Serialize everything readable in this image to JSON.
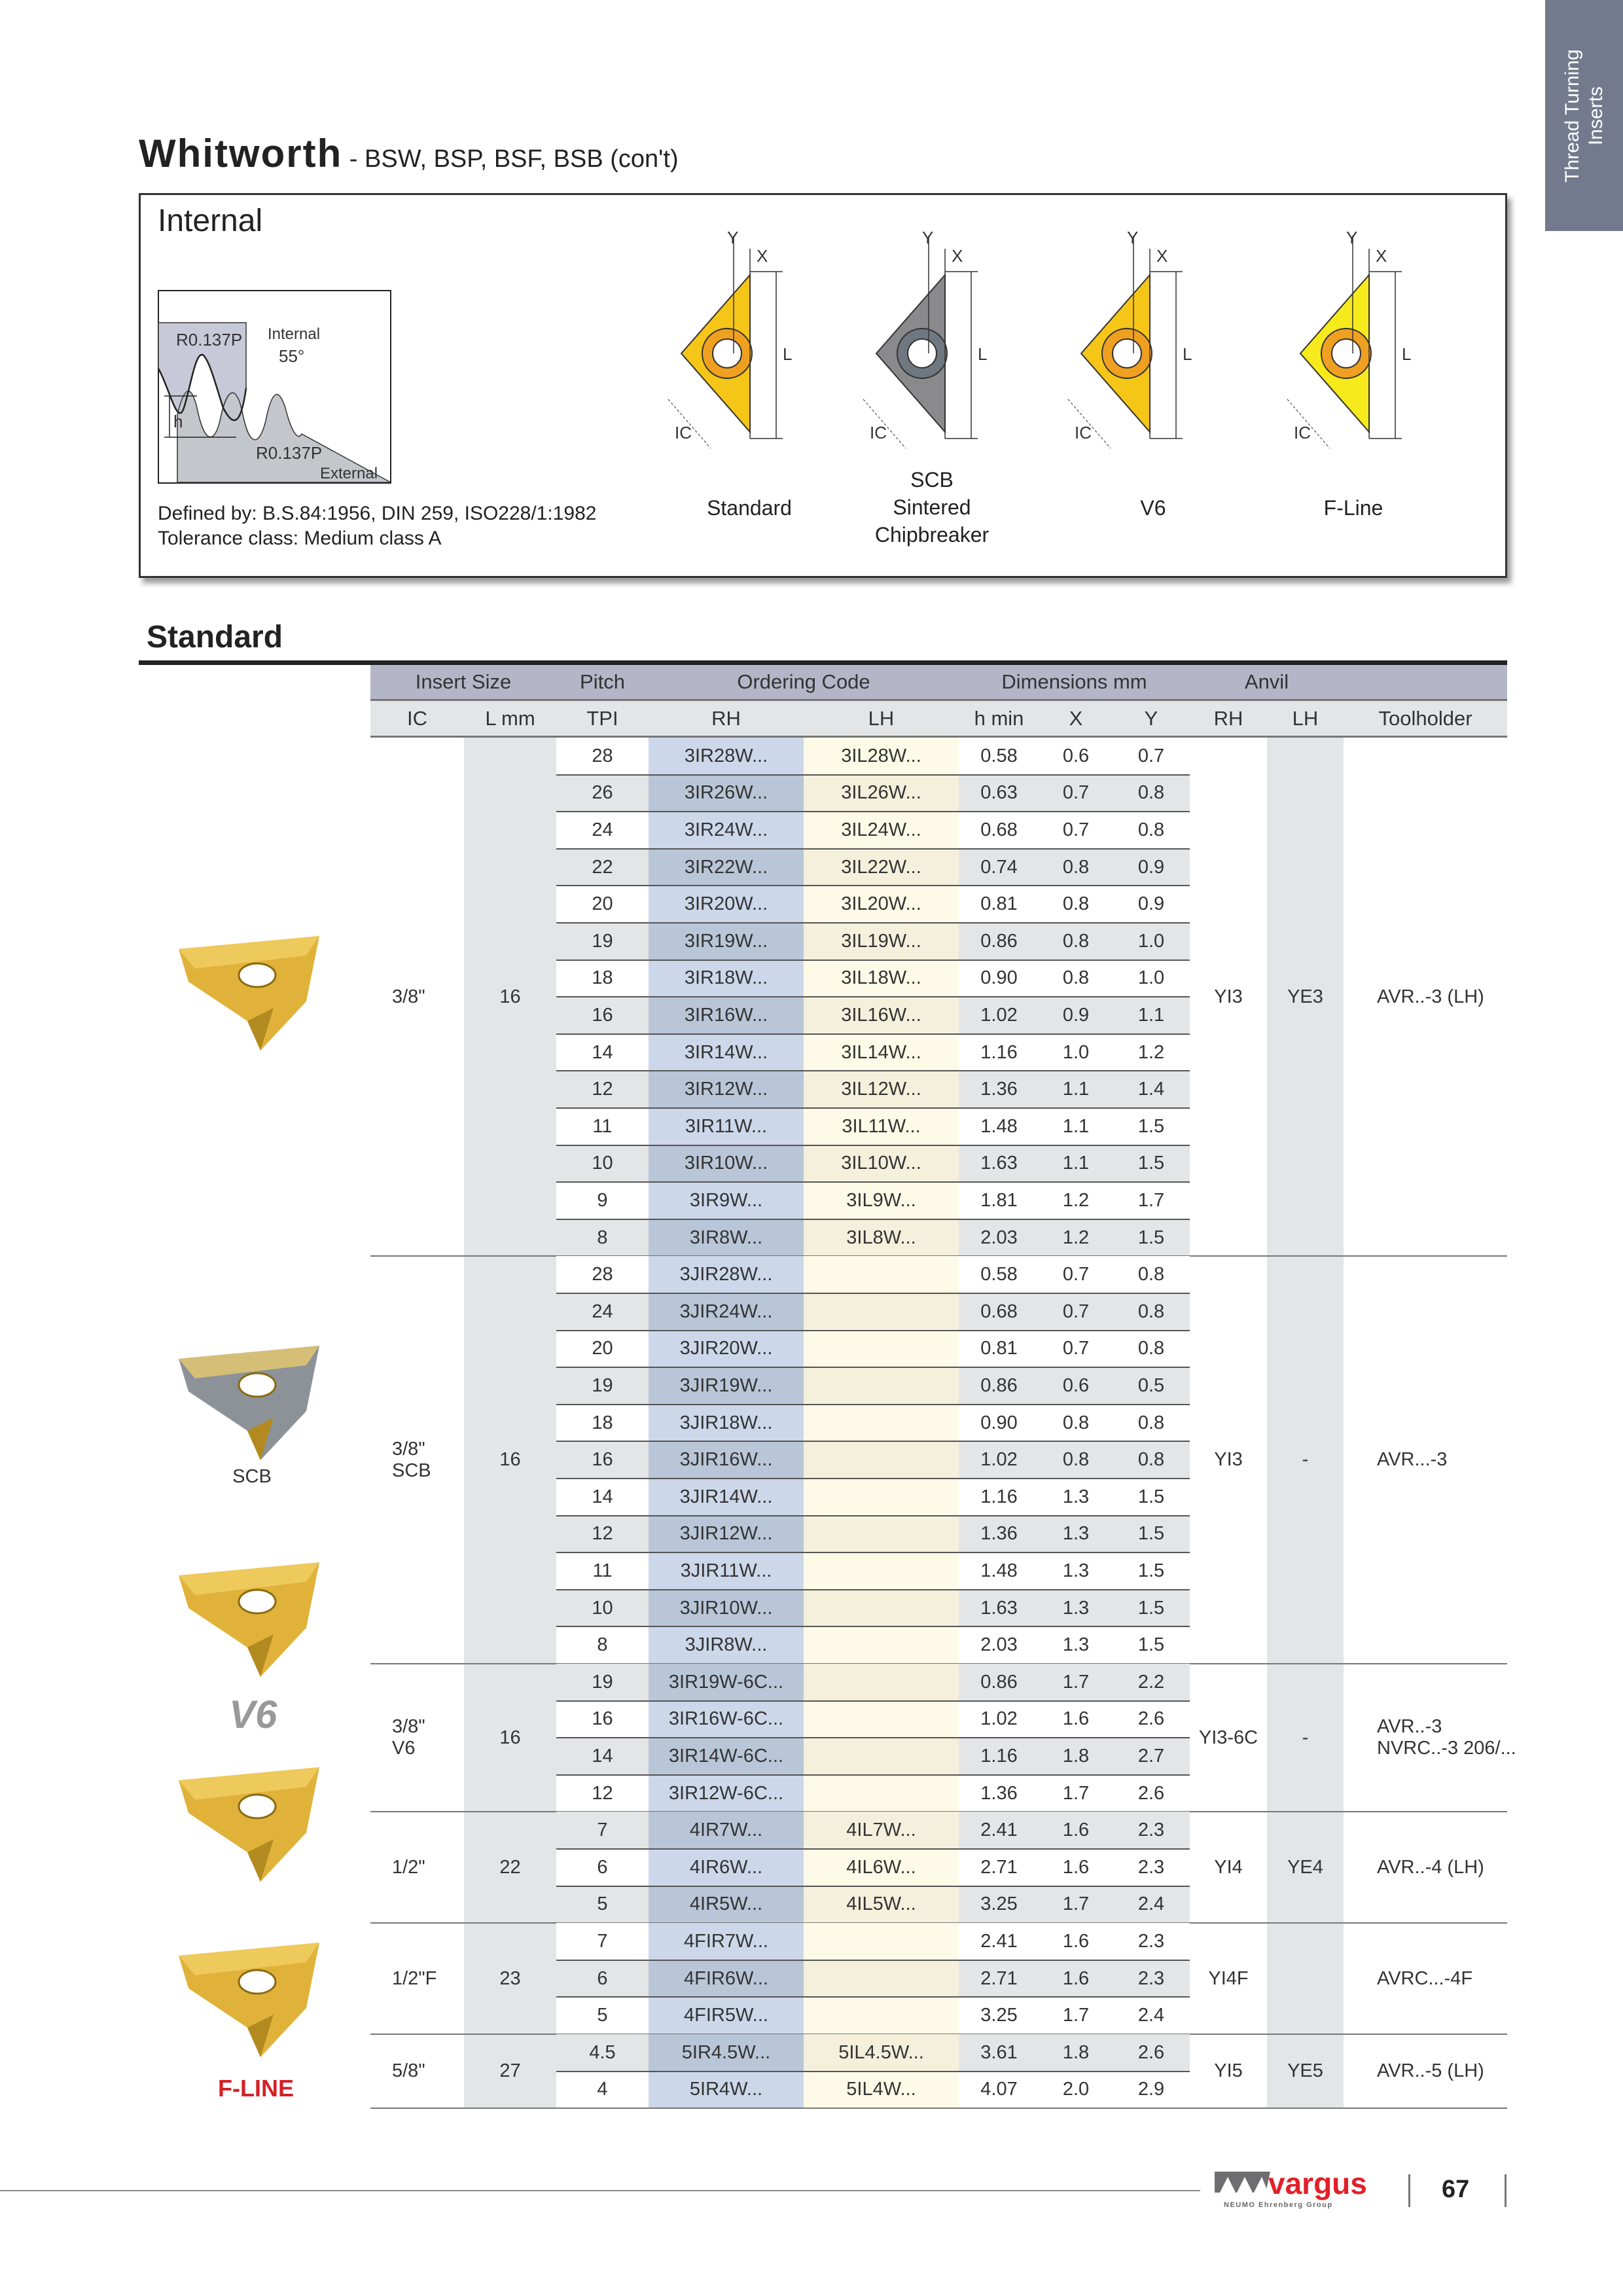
{
  "side_tab": {
    "line1": "Thread Turning",
    "line2": "Inserts"
  },
  "title": {
    "main": "Whitworth",
    "sub": " - BSW, BSP, BSF, BSB (con't)"
  },
  "info": {
    "heading": "Internal",
    "diagram": {
      "r_top": "R0.137P",
      "internal": "Internal",
      "angle": "55°",
      "h": "h",
      "r_bottom": "R0.137P",
      "external": "External"
    },
    "defined_by": "Defined by: B.S.84:1956, DIN 259, ISO228/1:1982",
    "tolerance": "Tolerance class: Medium class A",
    "dim_labels": {
      "y": "Y",
      "x": "X",
      "l": "L",
      "ic": "IC"
    },
    "inserts": [
      {
        "label_lines": [
          "Standard"
        ],
        "color": "#f5c518"
      },
      {
        "label_lines": [
          "SCB",
          "Sintered",
          "Chipbreaker"
        ],
        "color": "#8a8a8c"
      },
      {
        "label_lines": [
          "V6"
        ],
        "color": "#f5c518"
      },
      {
        "label_lines": [
          "F-Line"
        ],
        "color": "#f7ea1c"
      }
    ]
  },
  "section_heading": "Standard",
  "table": {
    "header_groups": [
      "Insert Size",
      "Pitch",
      "Ordering Code",
      "Dimensions mm",
      "Anvil"
    ],
    "columns": [
      "IC",
      "L mm",
      "TPI",
      "RH",
      "LH",
      "h min",
      "X",
      "Y",
      "RH",
      "LH",
      "Toolholder"
    ],
    "groups": [
      {
        "ic": [
          "3/8\""
        ],
        "lmm": "16",
        "anvil_rh": "YI3",
        "anvil_lh": "YE3",
        "toolholder": [
          "AVR..-3 (LH)"
        ],
        "image_label": "",
        "rows": [
          [
            "28",
            "3IR28W...",
            "3IL28W...",
            "0.58",
            "0.6",
            "0.7"
          ],
          [
            "26",
            "3IR26W...",
            "3IL26W...",
            "0.63",
            "0.7",
            "0.8"
          ],
          [
            "24",
            "3IR24W...",
            "3IL24W...",
            "0.68",
            "0.7",
            "0.8"
          ],
          [
            "22",
            "3IR22W...",
            "3IL22W...",
            "0.74",
            "0.8",
            "0.9"
          ],
          [
            "20",
            "3IR20W...",
            "3IL20W...",
            "0.81",
            "0.8",
            "0.9"
          ],
          [
            "19",
            "3IR19W...",
            "3IL19W...",
            "0.86",
            "0.8",
            "1.0"
          ],
          [
            "18",
            "3IR18W...",
            "3IL18W...",
            "0.90",
            "0.8",
            "1.0"
          ],
          [
            "16",
            "3IR16W...",
            "3IL16W...",
            "1.02",
            "0.9",
            "1.1"
          ],
          [
            "14",
            "3IR14W...",
            "3IL14W...",
            "1.16",
            "1.0",
            "1.2"
          ],
          [
            "12",
            "3IR12W...",
            "3IL12W...",
            "1.36",
            "1.1",
            "1.4"
          ],
          [
            "11",
            "3IR11W...",
            "3IL11W...",
            "1.48",
            "1.1",
            "1.5"
          ],
          [
            "10",
            "3IR10W...",
            "3IL10W...",
            "1.63",
            "1.1",
            "1.5"
          ],
          [
            "9",
            "3IR9W...",
            "3IL9W...",
            "1.81",
            "1.2",
            "1.7"
          ],
          [
            "8",
            "3IR8W...",
            "3IL8W...",
            "2.03",
            "1.2",
            "1.5"
          ]
        ]
      },
      {
        "ic": [
          "3/8\"",
          "SCB"
        ],
        "lmm": "16",
        "anvil_rh": "YI3",
        "anvil_lh": "-",
        "toolholder": [
          "AVR...-3"
        ],
        "image_label": "SCB",
        "rows": [
          [
            "28",
            "3JIR28W...",
            "",
            "0.58",
            "0.7",
            "0.8"
          ],
          [
            "24",
            "3JIR24W...",
            "",
            "0.68",
            "0.7",
            "0.8"
          ],
          [
            "20",
            "3JIR20W...",
            "",
            "0.81",
            "0.7",
            "0.8"
          ],
          [
            "19",
            "3JIR19W...",
            "",
            "0.86",
            "0.6",
            "0.5"
          ],
          [
            "18",
            "3JIR18W...",
            "",
            "0.90",
            "0.8",
            "0.8"
          ],
          [
            "16",
            "3JIR16W...",
            "",
            "1.02",
            "0.8",
            "0.8"
          ],
          [
            "14",
            "3JIR14W...",
            "",
            "1.16",
            "1.3",
            "1.5"
          ],
          [
            "12",
            "3JIR12W...",
            "",
            "1.36",
            "1.3",
            "1.5"
          ],
          [
            "11",
            "3JIR11W...",
            "",
            "1.48",
            "1.3",
            "1.5"
          ],
          [
            "10",
            "3JIR10W...",
            "",
            "1.63",
            "1.3",
            "1.5"
          ],
          [
            "8",
            "3JIR8W...",
            "",
            "2.03",
            "1.3",
            "1.5"
          ]
        ]
      },
      {
        "ic": [
          "3/8\"",
          "V6"
        ],
        "lmm": "16",
        "anvil_rh": "YI3-6C",
        "anvil_lh": "-",
        "toolholder": [
          "AVR..-3",
          "NVRC..-3 206/..."
        ],
        "image_label": "V6",
        "rows": [
          [
            "19",
            "3IR19W-6C...",
            "",
            "0.86",
            "1.7",
            "2.2"
          ],
          [
            "16",
            "3IR16W-6C...",
            "",
            "1.02",
            "1.6",
            "2.6"
          ],
          [
            "14",
            "3IR14W-6C...",
            "",
            "1.16",
            "1.8",
            "2.7"
          ],
          [
            "12",
            "3IR12W-6C...",
            "",
            "1.36",
            "1.7",
            "2.6"
          ]
        ]
      },
      {
        "ic": [
          "1/2\""
        ],
        "lmm": "22",
        "anvil_rh": "YI4",
        "anvil_lh": "YE4",
        "toolholder": [
          "AVR..-4 (LH)"
        ],
        "image_label": "",
        "rows": [
          [
            "7",
            "4IR7W...",
            "4IL7W...",
            "2.41",
            "1.6",
            "2.3"
          ],
          [
            "6",
            "4IR6W...",
            "4IL6W...",
            "2.71",
            "1.6",
            "2.3"
          ],
          [
            "5",
            "4IR5W...",
            "4IL5W...",
            "3.25",
            "1.7",
            "2.4"
          ]
        ]
      },
      {
        "ic": [
          "1/2\"F"
        ],
        "lmm": "23",
        "anvil_rh": "YI4F",
        "anvil_lh": "",
        "toolholder": [
          "AVRC...-4F"
        ],
        "image_label": "F-LINE",
        "rows": [
          [
            "7",
            "4FIR7W...",
            "",
            "2.41",
            "1.6",
            "2.3"
          ],
          [
            "6",
            "4FIR6W...",
            "",
            "2.71",
            "1.6",
            "2.3"
          ],
          [
            "5",
            "4FIR5W...",
            "",
            "3.25",
            "1.7",
            "2.4"
          ]
        ]
      },
      {
        "ic": [
          "5/8\""
        ],
        "lmm": "27",
        "anvil_rh": "YI5",
        "anvil_lh": "YE5",
        "toolholder": [
          "AVR..-5 (LH)"
        ],
        "image_label": "",
        "rows": [
          [
            "4.5",
            "5IR4.5W...",
            "5IL4.5W...",
            "3.61",
            "1.8",
            "2.6"
          ],
          [
            "4",
            "5IR4W...",
            "5IL4W...",
            "4.07",
            "2.0",
            "2.9"
          ]
        ]
      }
    ]
  },
  "footer": {
    "brand": "vargus",
    "brand_sub": "NEUMO Ehrenberg Group",
    "page_number": "67",
    "brand_color": "#e2202a"
  }
}
